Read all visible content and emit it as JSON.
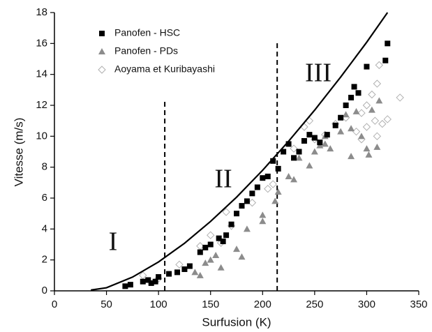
{
  "chart_data": {
    "type": "scatter",
    "xlabel": "Surfusion (K)",
    "ylabel": "Vitesse (m/s)",
    "xlim": [
      0,
      350
    ],
    "ylim": [
      0,
      18
    ],
    "xticks": [
      0,
      50,
      100,
      150,
      200,
      250,
      300,
      350
    ],
    "yticks": [
      0,
      2,
      4,
      6,
      8,
      10,
      12,
      14,
      16,
      18
    ],
    "legend": "upper left",
    "series": [
      {
        "name": "Panofen  - HSC",
        "color": "#000000",
        "marker": "square",
        "x": [
          68,
          73,
          85,
          90,
          93,
          97,
          100,
          110,
          118,
          125,
          130,
          140,
          145,
          150,
          158,
          162,
          165,
          170,
          175,
          180,
          185,
          190,
          195,
          200,
          205,
          210,
          215,
          220,
          225,
          230,
          235,
          240,
          245,
          250,
          255,
          262,
          270,
          275,
          280,
          285,
          288,
          292,
          300,
          318,
          320
        ],
        "y": [
          0.3,
          0.4,
          0.6,
          0.7,
          0.5,
          0.6,
          0.9,
          1.1,
          1.2,
          1.4,
          1.6,
          2.5,
          2.8,
          3.0,
          3.4,
          3.2,
          3.6,
          4.3,
          5.0,
          5.5,
          5.8,
          6.3,
          6.7,
          7.3,
          7.4,
          8.4,
          7.9,
          9.0,
          9.5,
          8.6,
          9.0,
          9.7,
          10.1,
          9.9,
          9.6,
          10.1,
          10.7,
          11.2,
          12.0,
          12.5,
          13.2,
          12.8,
          14.5,
          14.9,
          16.0
        ]
      },
      {
        "name": "Panofen - PDs",
        "color": "#8c8c8c",
        "marker": "triangle",
        "x": [
          135,
          140,
          145,
          150,
          155,
          160,
          175,
          180,
          185,
          200,
          200,
          212,
          215,
          225,
          230,
          235,
          245,
          250,
          255,
          260,
          265,
          275,
          280,
          285,
          290,
          295,
          300,
          302,
          305,
          310,
          312,
          285,
          260
        ],
        "y": [
          1.2,
          1.0,
          1.8,
          2.0,
          2.3,
          1.5,
          2.7,
          2.2,
          4.0,
          4.5,
          4.9,
          5.8,
          6.4,
          7.4,
          7.2,
          8.6,
          8.1,
          9.0,
          9.4,
          10.0,
          9.2,
          10.3,
          11.4,
          10.5,
          11.6,
          10.0,
          9.2,
          8.8,
          11.7,
          9.3,
          12.3,
          8.7,
          9.5
        ]
      },
      {
        "name": "Aoyama et Kuribayashi",
        "color": "#b0b0b0",
        "marker": "diamond",
        "x": [
          85,
          100,
          120,
          140,
          150,
          160,
          165,
          170,
          190,
          205,
          210,
          230,
          240,
          245,
          250,
          260,
          270,
          280,
          290,
          295,
          300,
          300,
          305,
          308,
          310,
          312,
          315,
          320,
          332,
          295,
          310
        ],
        "y": [
          1.0,
          0.8,
          1.7,
          2.9,
          3.6,
          3.1,
          5.1,
          4.2,
          5.7,
          6.6,
          6.9,
          9.2,
          10.6,
          11.0,
          9.8,
          10.1,
          10.8,
          11.2,
          10.3,
          11.5,
          10.6,
          12.0,
          12.7,
          11.0,
          13.4,
          14.6,
          10.8,
          11.1,
          12.5,
          9.8,
          10.0
        ]
      }
    ],
    "curve": {
      "color": "#000000",
      "x": [
        35,
        50,
        75,
        100,
        125,
        150,
        175,
        200,
        225,
        250,
        275,
        300,
        320
      ],
      "y": [
        0.05,
        0.2,
        0.89,
        1.87,
        3.08,
        4.49,
        6.06,
        7.8,
        9.68,
        11.69,
        13.83,
        16.08,
        18
      ]
    },
    "vlines": [
      106,
      214
    ],
    "annotations": [
      "I",
      "II",
      "III"
    ]
  }
}
